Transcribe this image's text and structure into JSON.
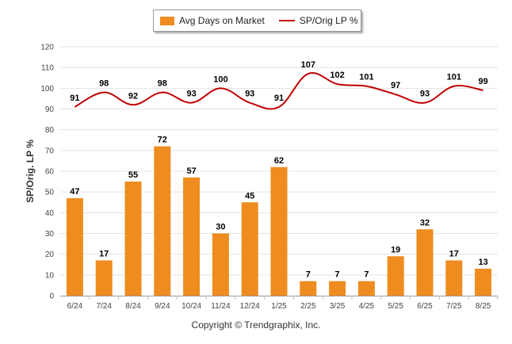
{
  "legend": {
    "bar_label": "Avg Days on Market",
    "line_label": "SP/Orig LP %"
  },
  "footer": "Copyright © Trendgraphix, Inc.",
  "colors": {
    "bar": "#ef8c1f",
    "line": "#c00000"
  },
  "chart_data": {
    "type": "bar",
    "title": "",
    "xlabel": "",
    "ylabel": "SP/Orig. LP %",
    "ylim": [
      0,
      120
    ],
    "yticks": [
      0,
      10,
      20,
      30,
      40,
      50,
      60,
      70,
      80,
      90,
      100,
      110,
      120
    ],
    "grid": true,
    "legend_position": "top-center",
    "categories": [
      "6/24",
      "7/24",
      "8/24",
      "9/24",
      "10/24",
      "11/24",
      "12/24",
      "1/25",
      "2/25",
      "3/25",
      "4/25",
      "5/25",
      "6/25",
      "7/25",
      "8/25"
    ],
    "series": [
      {
        "name": "Avg Days on Market",
        "type": "bar",
        "values": [
          47,
          17,
          55,
          72,
          57,
          30,
          45,
          62,
          7,
          7,
          7,
          19,
          32,
          17,
          13
        ]
      },
      {
        "name": "SP/Orig LP %",
        "type": "line",
        "values": [
          91,
          98,
          92,
          98,
          93,
          100,
          93,
          91,
          107,
          102,
          101,
          97,
          93,
          101,
          99
        ]
      }
    ]
  }
}
